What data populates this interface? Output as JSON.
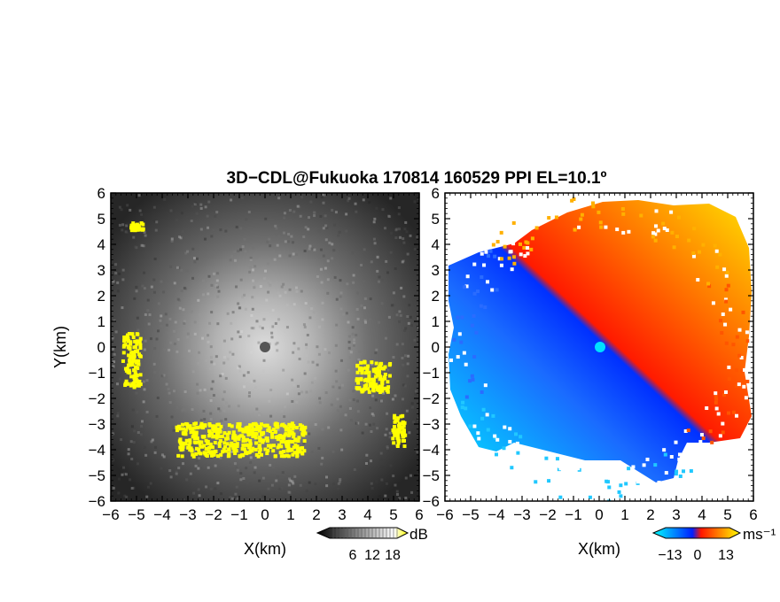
{
  "title": "3D−CDL@Fukuoka 170814 160529 PPI EL=10.1º",
  "chart_data": [
    {
      "type": "heatmap",
      "panel": "reflectivity",
      "xlabel": "X(km)",
      "ylabel": "Y(km)",
      "xlim": [
        -6,
        6
      ],
      "ylim": [
        -6,
        6
      ],
      "xticks": [
        "−6",
        "−5",
        "−4",
        "−3",
        "−2",
        "−1",
        "0",
        "1",
        "2",
        "3",
        "4",
        "5",
        "6"
      ],
      "yticks": [
        "6",
        "5",
        "4",
        "3",
        "2",
        "1",
        "0",
        "−1",
        "−2",
        "−3",
        "−4",
        "−5",
        "−6"
      ],
      "colorbar": {
        "unit": "dB",
        "ticks": [
          "6",
          "12",
          "18"
        ],
        "colors": [
          "#000000",
          "#ffffff",
          "#ffff00"
        ]
      },
      "features": {
        "high_return_color": "#ffff00",
        "high_return_regions": [
          {
            "x": [
              -3.5,
              1.5
            ],
            "y": [
              -4.2,
              -2.9
            ]
          },
          {
            "x": [
              -5.6,
              -4.9
            ],
            "y": [
              -1.5,
              0.6
            ]
          },
          {
            "x": [
              3.5,
              4.8
            ],
            "y": [
              -1.7,
              -0.5
            ]
          },
          {
            "x": [
              4.9,
              5.4
            ],
            "y": [
              -3.8,
              -2.6
            ]
          },
          {
            "x": [
              -5.3,
              -4.8
            ],
            "y": [
              4.6,
              4.9
            ]
          }
        ]
      }
    },
    {
      "type": "heatmap",
      "panel": "doppler-velocity",
      "xlabel": "X(km)",
      "xlim": [
        -6,
        6
      ],
      "ylim": [
        -6,
        6
      ],
      "xticks": [
        "−6",
        "−5",
        "−4",
        "−3",
        "−2",
        "−1",
        "0",
        "1",
        "2",
        "3",
        "4",
        "5",
        "6"
      ],
      "yticks": [
        "6",
        "5",
        "4",
        "3",
        "2",
        "1",
        "0",
        "−1",
        "−2",
        "−3",
        "−4",
        "−5",
        "−6"
      ],
      "colorbar": {
        "unit": "ms⁻¹",
        "ticks": [
          "−13",
          "0",
          "13"
        ],
        "colors": [
          "#00ffff",
          "#0020ff",
          "#ff1500",
          "#ffff00"
        ]
      },
      "features": {
        "negative_color": "#0a58ff",
        "positive_color": "#ff4a00",
        "radar_site": [
          0,
          0
        ]
      }
    }
  ]
}
